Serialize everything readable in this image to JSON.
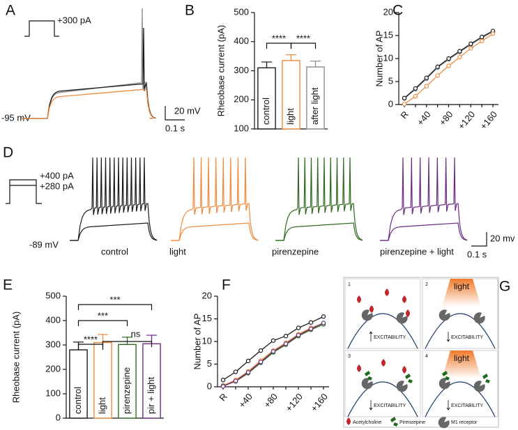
{
  "chart_data": [
    {
      "type": "trace",
      "label": "A",
      "steps": [
        "+300 pA"
      ],
      "baseline": "-95 mV",
      "scale_y": "20 mV",
      "scale_x": "0.1 s",
      "colors": [
        "#8c8c8c",
        "#1a1a1a",
        "#f08a3c"
      ]
    },
    {
      "type": "bar",
      "label": "B",
      "ylabel": "Rheobase current (pA)",
      "categories": [
        "control",
        "light",
        "after light"
      ],
      "values": [
        310,
        335,
        313
      ],
      "errors": [
        20,
        20,
        20
      ],
      "colors": [
        "#1a1a1a",
        "#f08a3c",
        "#8c8c8c"
      ],
      "ylim": [
        100,
        500
      ],
      "yticks": [
        100,
        200,
        300,
        400,
        500
      ],
      "significance": [
        "****",
        "****"
      ]
    },
    {
      "type": "line",
      "label": "C",
      "ylabel": "Number of AP",
      "categories": [
        "R",
        null,
        "+40",
        null,
        "+80",
        null,
        "+120",
        null,
        "+160"
      ],
      "series": [
        {
          "color": "#8c8c8c",
          "values": [
            1.3,
            3.3,
            5.6,
            8,
            9.8,
            11.4,
            13,
            14.5,
            15.8
          ]
        },
        {
          "color": "#1a1a1a",
          "values": [
            1.4,
            3.5,
            5.8,
            8.2,
            10,
            11.6,
            13.2,
            14.7,
            16
          ]
        },
        {
          "color": "#f08a3c",
          "values": [
            0.1,
            1.8,
            4,
            6.3,
            8.4,
            10.3,
            12.2,
            13.8,
            15.4
          ]
        }
      ],
      "ylim": [
        0,
        20
      ],
      "yticks": [
        0,
        5,
        10,
        15,
        20
      ]
    },
    {
      "type": "trace",
      "label": "D",
      "steps": [
        "+400 pA",
        "+280 pA"
      ],
      "baseline": "-89 mV",
      "scale_y": "20 mv",
      "scale_x": "0.1 s",
      "conditions": [
        {
          "name": "control",
          "color": "#1a1a1a"
        },
        {
          "name": "light",
          "color": "#f08a3c"
        },
        {
          "name": "pirenzepine",
          "color": "#2d6a1f"
        },
        {
          "name": "pirenzepine + light",
          "color": "#6a2c82"
        }
      ]
    },
    {
      "type": "bar",
      "label": "E",
      "ylabel": "Rheobase current (pA)",
      "categories": [
        "control",
        "light",
        "pirenzepine",
        "pir + light"
      ],
      "values": [
        280,
        310,
        302,
        305
      ],
      "errors": [
        32,
        33,
        30,
        35
      ],
      "colors": [
        "#1a1a1a",
        "#f08a3c",
        "#2d6a1f",
        "#6a2c82"
      ],
      "ylim": [
        0,
        500
      ],
      "yticks": [
        0,
        100,
        200,
        300,
        400,
        500
      ],
      "significance": [
        "***",
        "***",
        "****",
        "ns"
      ]
    },
    {
      "type": "line",
      "label": "F",
      "ylabel": "Number of AP",
      "categories": [
        "R",
        null,
        "+40",
        null,
        "+80",
        null,
        "+120",
        null,
        "+160"
      ],
      "series": [
        {
          "color": "#1a1a1a",
          "values": [
            1.5,
            3.3,
            5.7,
            8,
            10.2,
            11.2,
            13,
            14.2,
            15.5
          ]
        },
        {
          "color": "#f08a3c",
          "values": [
            0.3,
            1.5,
            3.4,
            5.8,
            8,
            9.7,
            11.6,
            13,
            14
          ]
        },
        {
          "color": "#2d6a1f",
          "values": [
            0.2,
            1.2,
            3,
            5.3,
            7.6,
            9.3,
            11.2,
            12.6,
            13.8
          ]
        },
        {
          "color": "#6a2c82",
          "values": [
            0.1,
            1.3,
            3.2,
            5.5,
            7.8,
            9.5,
            11.4,
            12.8,
            14.1
          ]
        }
      ],
      "ylim": [
        0,
        20
      ],
      "yticks": [
        0,
        5,
        10,
        15,
        20
      ]
    },
    {
      "type": "diagram",
      "label": "G",
      "panels": [
        {
          "number": "1",
          "text": "EXCITABILITY"
        },
        {
          "number": "2",
          "light": "light",
          "text": "EXCITABILITY"
        },
        {
          "number": "3",
          "text": "EXCITABILITY"
        },
        {
          "number": "4",
          "light": "light",
          "text": "EXCITABILITY"
        }
      ],
      "legend": [
        "Acetylcholine",
        "Pirenzepine",
        "M1 receptor"
      ]
    }
  ]
}
